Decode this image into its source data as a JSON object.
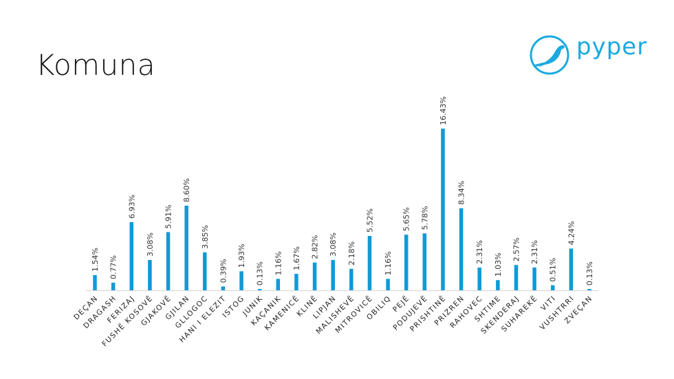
{
  "title": "Komuna",
  "logo": {
    "text": "pyper",
    "color": "#1aa9e0"
  },
  "chart_data": {
    "type": "bar",
    "title": "Komuna",
    "xlabel": "",
    "ylabel": "",
    "ylim": [
      0,
      18
    ],
    "grid": false,
    "bar_color": "#0e9ad7",
    "categories": [
      "DEÇAN",
      "DRAGASH",
      "FERIZAJ",
      "FUSHË KOSOVË",
      "GJAKOVË",
      "GJILAN",
      "GLLOGOC",
      "HANI I ELEZIT",
      "ISTOG",
      "JUNIK",
      "KAÇANIK",
      "KAMENICË",
      "KLINË",
      "LIPJAN",
      "MALISHEVË",
      "MITROVICË",
      "OBILIQ",
      "PEJË",
      "PODUJEVË",
      "PRISHTINË",
      "PRIZREN",
      "RAHOVEC",
      "SHTIME",
      "SKENDERAJ",
      "SUHAREKË",
      "VITI",
      "VUSHTRRI",
      "ZVEÇAN"
    ],
    "values": [
      1.54,
      0.77,
      6.93,
      3.08,
      5.91,
      8.6,
      3.85,
      0.39,
      1.93,
      0.13,
      1.16,
      1.67,
      2.82,
      3.08,
      2.18,
      5.52,
      1.16,
      5.65,
      5.78,
      16.43,
      8.34,
      2.31,
      1.03,
      2.57,
      2.31,
      0.51,
      4.24,
      0.13
    ],
    "labels": [
      "1.54%",
      "0.77%",
      "6.93%",
      "3.08%",
      "5.91%",
      "8.60%",
      "3.85%",
      "0.39%",
      "1.93%",
      "0.13%",
      "1.16%",
      "1.67%",
      "2.82%",
      "3.08%",
      "2.18%",
      "5.52%",
      "1.16%",
      "5.65%",
      "5.78%",
      "16.43%",
      "8.34%",
      "2.31%",
      "1.03%",
      "2.57%",
      "2.31%",
      "0.51%",
      "4.24%",
      "0.13%"
    ]
  }
}
